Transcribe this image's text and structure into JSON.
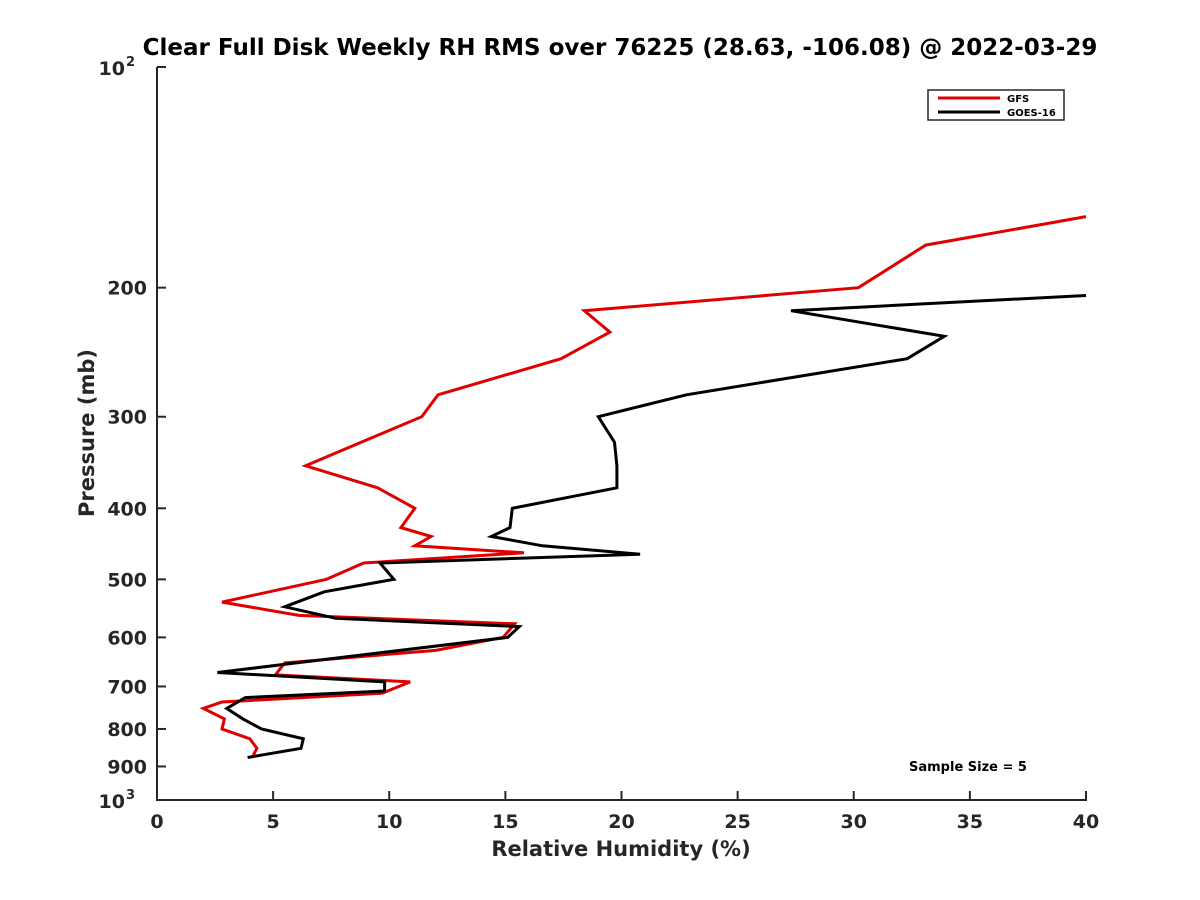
{
  "chart_data": {
    "type": "line",
    "title": "Clear Full Disk Weekly RH RMS over 76225 (28.63, -106.08) @ 2022-03-29",
    "xlabel": "Relative Humidity (%)",
    "ylabel": "Pressure (mb)",
    "xlim": [
      0,
      40
    ],
    "ylim": [
      100,
      1000
    ],
    "y_scale": "log",
    "y_reversed": true,
    "grid": false,
    "legend_position": "top-right",
    "xticks": [
      0,
      5,
      10,
      15,
      20,
      25,
      30,
      35,
      40
    ],
    "yticks": [
      {
        "value": 100,
        "base": "10",
        "exp": "2"
      },
      {
        "value": 200,
        "label": "200"
      },
      {
        "value": 300,
        "label": "300"
      },
      {
        "value": 400,
        "label": "400"
      },
      {
        "value": 500,
        "label": "500"
      },
      {
        "value": 600,
        "label": "600"
      },
      {
        "value": 700,
        "label": "700"
      },
      {
        "value": 800,
        "label": "800"
      },
      {
        "value": 900,
        "label": "900"
      },
      {
        "value": 1000,
        "base": "10",
        "exp": "3"
      }
    ],
    "annotation": "Sample Size = 5",
    "series": [
      {
        "name": "GFS",
        "color": "#e00000",
        "points": [
          {
            "x": 40.0,
            "y": 160
          },
          {
            "x": 33.1,
            "y": 175
          },
          {
            "x": 30.2,
            "y": 200
          },
          {
            "x": 18.4,
            "y": 215
          },
          {
            "x": 19.5,
            "y": 230
          },
          {
            "x": 17.4,
            "y": 250
          },
          {
            "x": 12.1,
            "y": 280
          },
          {
            "x": 11.4,
            "y": 300
          },
          {
            "x": 9.3,
            "y": 320
          },
          {
            "x": 6.4,
            "y": 350
          },
          {
            "x": 9.5,
            "y": 375
          },
          {
            "x": 11.1,
            "y": 400
          },
          {
            "x": 10.5,
            "y": 425
          },
          {
            "x": 11.8,
            "y": 437
          },
          {
            "x": 11.1,
            "y": 450
          },
          {
            "x": 15.8,
            "y": 460
          },
          {
            "x": 8.9,
            "y": 475
          },
          {
            "x": 7.3,
            "y": 500
          },
          {
            "x": 2.8,
            "y": 537
          },
          {
            "x": 6.1,
            "y": 560
          },
          {
            "x": 15.4,
            "y": 575
          },
          {
            "x": 14.9,
            "y": 600
          },
          {
            "x": 12.0,
            "y": 625
          },
          {
            "x": 5.5,
            "y": 650
          },
          {
            "x": 5.1,
            "y": 675
          },
          {
            "x": 10.9,
            "y": 690
          },
          {
            "x": 9.7,
            "y": 715
          },
          {
            "x": 2.8,
            "y": 735
          },
          {
            "x": 2.0,
            "y": 750
          },
          {
            "x": 2.9,
            "y": 775
          },
          {
            "x": 2.8,
            "y": 800
          },
          {
            "x": 4.0,
            "y": 825
          },
          {
            "x": 4.3,
            "y": 850
          },
          {
            "x": 4.1,
            "y": 875
          }
        ]
      },
      {
        "name": "GOES-16",
        "color": "#000000",
        "points": [
          {
            "x": 40.0,
            "y": 205
          },
          {
            "x": 27.3,
            "y": 215
          },
          {
            "x": 33.9,
            "y": 233
          },
          {
            "x": 32.3,
            "y": 250
          },
          {
            "x": 22.8,
            "y": 280
          },
          {
            "x": 19.0,
            "y": 300
          },
          {
            "x": 19.7,
            "y": 325
          },
          {
            "x": 19.8,
            "y": 350
          },
          {
            "x": 19.8,
            "y": 375
          },
          {
            "x": 15.3,
            "y": 400
          },
          {
            "x": 15.2,
            "y": 425
          },
          {
            "x": 14.4,
            "y": 437
          },
          {
            "x": 16.6,
            "y": 450
          },
          {
            "x": 20.8,
            "y": 462
          },
          {
            "x": 9.6,
            "y": 475
          },
          {
            "x": 10.2,
            "y": 500
          },
          {
            "x": 7.2,
            "y": 520
          },
          {
            "x": 5.5,
            "y": 545
          },
          {
            "x": 7.7,
            "y": 565
          },
          {
            "x": 15.6,
            "y": 580
          },
          {
            "x": 15.1,
            "y": 600
          },
          {
            "x": 6.0,
            "y": 650
          },
          {
            "x": 2.6,
            "y": 670
          },
          {
            "x": 9.8,
            "y": 690
          },
          {
            "x": 9.8,
            "y": 710
          },
          {
            "x": 3.8,
            "y": 725
          },
          {
            "x": 3.0,
            "y": 750
          },
          {
            "x": 3.7,
            "y": 775
          },
          {
            "x": 4.5,
            "y": 800
          },
          {
            "x": 6.3,
            "y": 825
          },
          {
            "x": 6.2,
            "y": 850
          },
          {
            "x": 3.9,
            "y": 875
          }
        ]
      }
    ]
  }
}
